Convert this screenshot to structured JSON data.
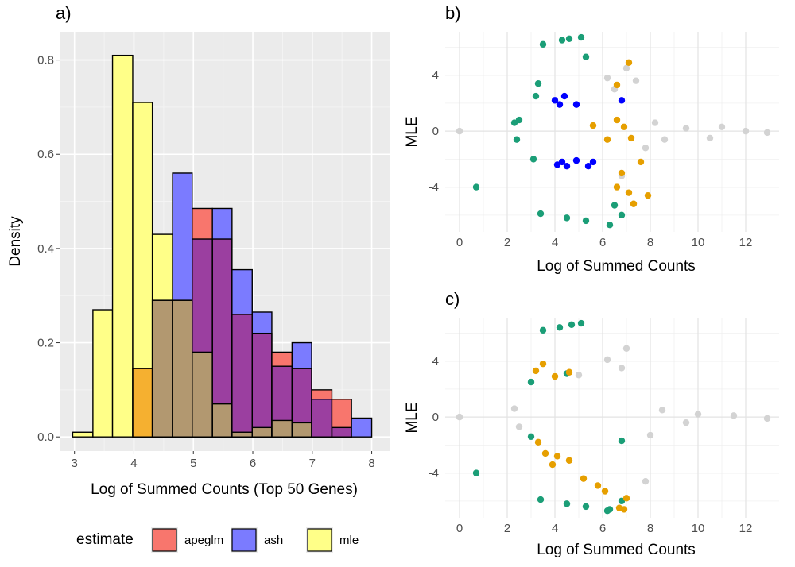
{
  "chart_data": [
    {
      "panel_label": "a)",
      "type": "bar",
      "subtype": "overlaid-histogram",
      "xlabel": "Log of Summed Counts (Top 50 Genes)",
      "ylabel": "Density",
      "xlim": [
        2.75,
        8.3
      ],
      "ylim": [
        -0.03,
        0.86
      ],
      "xticks": [
        "3",
        "4",
        "5",
        "6",
        "7",
        "8"
      ],
      "xtick_values": [
        3,
        4,
        5,
        6,
        7,
        8
      ],
      "yticks": [
        "0.0",
        "0.2",
        "0.4",
        "0.6",
        "0.8"
      ],
      "ytick_values": [
        0,
        0.2,
        0.4,
        0.6,
        0.8
      ],
      "grid": true,
      "legend_position": "bottom",
      "legend_title": "estimate",
      "bin_edges": [
        2.97,
        3.31,
        3.64,
        3.98,
        4.31,
        4.65,
        4.98,
        5.32,
        5.65,
        5.99,
        6.32,
        6.66,
        6.99,
        7.33,
        7.66,
        8.0,
        8.33
      ],
      "series": [
        {
          "name": "apeglm",
          "color": "#F8766D",
          "values": [
            0,
            0,
            0,
            0.145,
            0.29,
            0.29,
            0.485,
            0.42,
            0.26,
            0.22,
            0.18,
            0.145,
            0.1,
            0.08,
            0,
            0
          ]
        },
        {
          "name": "ash",
          "color": "#7B7BFF",
          "values": [
            0,
            0,
            0,
            0,
            0.29,
            0.56,
            0.42,
            0.485,
            0.355,
            0.265,
            0.15,
            0.2,
            0.08,
            0.02,
            0.04,
            0
          ]
        },
        {
          "name": "mle",
          "color": "#FFFF88",
          "values": [
            0.01,
            0.27,
            0.81,
            0.71,
            0.43,
            0.29,
            0.18,
            0.07,
            0.01,
            0.02,
            0.035,
            0.03,
            0,
            0,
            0,
            0
          ]
        }
      ],
      "overlap_colors": {
        "apeglm+ash": "#9B3FA0",
        "ash+mle": "#7A32C8",
        "apeglm+mle": "#F5B030",
        "all": "#B29870"
      }
    },
    {
      "panel_label": "b)",
      "type": "scatter",
      "xlabel": "Log of Summed Counts",
      "ylabel": "MLE",
      "xlim": [
        -0.6,
        13.4
      ],
      "ylim": [
        -7.2,
        7.1
      ],
      "xticks": [
        "0",
        "2",
        "4",
        "6",
        "8",
        "10",
        "12"
      ],
      "xtick_values": [
        0,
        2,
        4,
        6,
        8,
        10,
        12
      ],
      "yticks": [
        "-4",
        "0",
        "4"
      ],
      "ytick_values": [
        -4,
        0,
        4
      ],
      "grid": true,
      "series": [
        {
          "name": "",
          "color": "#D3D3D3",
          "points": [
            [
              0,
              0
            ],
            [
              12.9,
              -0.1
            ],
            [
              6.5,
              3.0
            ],
            [
              7.0,
              4.5
            ],
            [
              7.4,
              3.6
            ],
            [
              6.8,
              -3.2
            ],
            [
              6.2,
              3.8
            ],
            [
              8.2,
              0.6
            ],
            [
              9.5,
              0.2
            ],
            [
              11.0,
              0.3
            ],
            [
              12.0,
              0.0
            ],
            [
              10.5,
              -0.5
            ],
            [
              8.6,
              -0.6
            ],
            [
              7.8,
              -1.2
            ]
          ]
        },
        {
          "name": "",
          "color": "#1B9E77",
          "points": [
            [
              0.7,
              -4.0
            ],
            [
              2.5,
              0.8
            ],
            [
              2.3,
              0.6
            ],
            [
              2.4,
              -0.6
            ],
            [
              3.2,
              2.5
            ],
            [
              3.3,
              3.4
            ],
            [
              3.1,
              -2.0
            ],
            [
              3.5,
              6.2
            ],
            [
              4.3,
              6.5
            ],
            [
              4.6,
              6.6
            ],
            [
              5.1,
              6.7
            ],
            [
              3.4,
              -5.9
            ],
            [
              4.5,
              -6.2
            ],
            [
              5.3,
              -6.4
            ],
            [
              6.3,
              -6.7
            ],
            [
              6.8,
              -6.0
            ],
            [
              6.5,
              -5.3
            ],
            [
              5.3,
              5.3
            ]
          ]
        },
        {
          "name": "",
          "color": "#E69F00",
          "points": [
            [
              7.1,
              4.9
            ],
            [
              6.6,
              3.3
            ],
            [
              6.6,
              0.8
            ],
            [
              6.9,
              0.3
            ],
            [
              7.2,
              -0.5
            ],
            [
              7.6,
              -2.2
            ],
            [
              6.8,
              -3.0
            ],
            [
              6.6,
              -4.0
            ],
            [
              7.9,
              -4.6
            ],
            [
              7.1,
              -4.4
            ],
            [
              7.3,
              -5.2
            ],
            [
              6.2,
              -0.6
            ],
            [
              5.6,
              0.4
            ]
          ]
        },
        {
          "name": "",
          "color": "#0000FF",
          "points": [
            [
              4.0,
              2.2
            ],
            [
              4.2,
              1.9
            ],
            [
              4.4,
              2.5
            ],
            [
              4.9,
              1.9
            ],
            [
              6.8,
              2.2
            ],
            [
              4.3,
              -2.2
            ],
            [
              4.5,
              -2.5
            ],
            [
              4.9,
              -2.1
            ],
            [
              5.4,
              -2.5
            ],
            [
              5.6,
              -2.2
            ],
            [
              4.1,
              -2.4
            ]
          ]
        }
      ]
    },
    {
      "panel_label": "c)",
      "type": "scatter",
      "xlabel": "Log of Summed Counts",
      "ylabel": "MLE",
      "xlim": [
        -0.6,
        13.4
      ],
      "ylim": [
        -7.2,
        7.1
      ],
      "xticks": [
        "0",
        "2",
        "4",
        "6",
        "8",
        "10",
        "12"
      ],
      "xtick_values": [
        0,
        2,
        4,
        6,
        8,
        10,
        12
      ],
      "yticks": [
        "-4",
        "0",
        "4"
      ],
      "ytick_values": [
        -4,
        0,
        4
      ],
      "grid": true,
      "series": [
        {
          "name": "",
          "color": "#D3D3D3",
          "points": [
            [
              0,
              0
            ],
            [
              12.9,
              -0.1
            ],
            [
              7.0,
              4.9
            ],
            [
              6.8,
              3.5
            ],
            [
              6.2,
              4.1
            ],
            [
              5.0,
              3.0
            ],
            [
              7.8,
              -4.6
            ],
            [
              8.5,
              0.5
            ],
            [
              10.0,
              0.2
            ],
            [
              11.5,
              0.1
            ],
            [
              9.5,
              -0.4
            ],
            [
              8.0,
              -1.3
            ],
            [
              2.3,
              0.6
            ],
            [
              2.5,
              -0.7
            ]
          ]
        },
        {
          "name": "",
          "color": "#1B9E77",
          "points": [
            [
              0.7,
              -4.0
            ],
            [
              3.5,
              6.2
            ],
            [
              4.2,
              6.4
            ],
            [
              4.7,
              6.6
            ],
            [
              5.1,
              6.7
            ],
            [
              3.4,
              -5.9
            ],
            [
              4.5,
              -6.2
            ],
            [
              5.3,
              -6.4
            ],
            [
              6.3,
              -6.6
            ],
            [
              6.8,
              -6.0
            ],
            [
              6.2,
              -6.7
            ],
            [
              6.8,
              -1.7
            ],
            [
              3.0,
              -1.4
            ],
            [
              4.5,
              3.1
            ],
            [
              3.0,
              2.5
            ]
          ]
        },
        {
          "name": "",
          "color": "#E69F00",
          "points": [
            [
              3.2,
              3.3
            ],
            [
              3.5,
              3.8
            ],
            [
              4.0,
              2.9
            ],
            [
              4.6,
              3.2
            ],
            [
              3.3,
              -1.8
            ],
            [
              3.6,
              -2.6
            ],
            [
              4.1,
              -2.8
            ],
            [
              3.9,
              -3.4
            ],
            [
              4.6,
              -3.1
            ],
            [
              5.2,
              -4.4
            ],
            [
              5.8,
              -4.9
            ],
            [
              6.1,
              -5.3
            ],
            [
              7.0,
              -5.8
            ],
            [
              6.7,
              -6.5
            ],
            [
              6.9,
              -6.6
            ]
          ]
        }
      ]
    }
  ]
}
